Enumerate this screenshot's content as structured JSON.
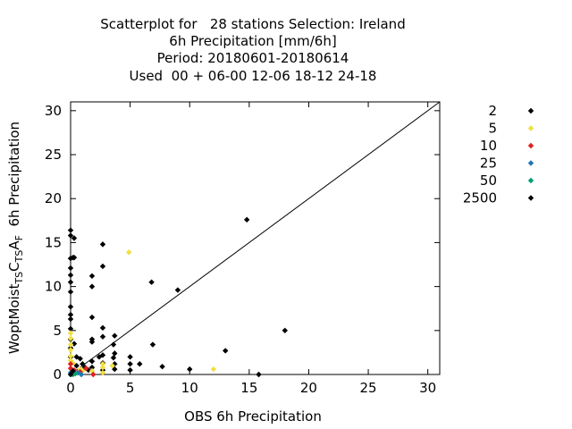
{
  "chart_data": {
    "type": "scatter",
    "title_lines": [
      "Scatterplot for   28 stations Selection: Ireland",
      "6h Precipitation [mm/6h]",
      "Period: 20180601-20180614",
      "Used  00 + 06-00 12-06 18-12 24-18"
    ],
    "xlabel": "OBS 6h Precipitation",
    "ylabel_parts": [
      "WoptMoist",
      "TS",
      "C",
      "TS",
      "A",
      "F",
      "  6h Precipitation"
    ],
    "xlim": [
      0,
      31
    ],
    "ylim": [
      0,
      31
    ],
    "xticks": [
      0,
      5,
      10,
      15,
      20,
      25,
      30
    ],
    "yticks": [
      0,
      5,
      10,
      15,
      20,
      25,
      30
    ],
    "diagonal": true,
    "legend_position": "top-right, outside plot",
    "series": [
      {
        "name": "2",
        "color": "#000000",
        "points": [
          [
            0,
            16.4
          ],
          [
            0,
            15.8
          ],
          [
            0.3,
            15.5
          ],
          [
            0,
            13.2
          ],
          [
            0.2,
            13.3
          ],
          [
            0.3,
            13.3
          ],
          [
            0,
            12.1
          ],
          [
            0,
            11.3
          ],
          [
            0,
            10.5
          ],
          [
            0,
            9.4
          ],
          [
            0,
            7.7
          ],
          [
            0,
            6.8
          ],
          [
            0,
            6.3
          ],
          [
            0,
            5.2
          ],
          [
            0,
            4.0
          ],
          [
            0,
            3.0
          ],
          [
            0,
            2.0
          ],
          [
            0.3,
            3.5
          ],
          [
            0.5,
            2.0
          ],
          [
            0.8,
            1.8
          ],
          [
            0.5,
            1.0
          ],
          [
            1.0,
            1.2
          ],
          [
            1.2,
            0.8
          ],
          [
            1.5,
            0.5
          ],
          [
            1.8,
            11.2
          ],
          [
            1.8,
            10.0
          ],
          [
            1.8,
            6.5
          ],
          [
            1.8,
            4.0
          ],
          [
            1.8,
            3.7
          ],
          [
            1.8,
            1.5
          ],
          [
            1.8,
            0.8
          ],
          [
            2.7,
            14.8
          ],
          [
            2.7,
            12.3
          ],
          [
            2.7,
            5.3
          ],
          [
            2.7,
            4.3
          ],
          [
            2.7,
            2.2
          ],
          [
            2.4,
            2.0
          ],
          [
            2.7,
            1.3
          ],
          [
            2.7,
            0.5
          ],
          [
            3.7,
            4.4
          ],
          [
            3.6,
            3.4
          ],
          [
            3.7,
            2.4
          ],
          [
            3.6,
            1.9
          ],
          [
            3.7,
            1.2
          ],
          [
            3.7,
            0.6
          ],
          [
            5.0,
            2.0
          ],
          [
            5.0,
            1.2
          ],
          [
            5.0,
            0.5
          ],
          [
            5.8,
            1.2
          ],
          [
            6.8,
            10.5
          ],
          [
            6.9,
            3.4
          ],
          [
            7.7,
            0.9
          ],
          [
            9.0,
            9.6
          ],
          [
            10.0,
            0.6
          ],
          [
            13.0,
            2.7
          ],
          [
            14.8,
            17.6
          ],
          [
            15.8,
            0.0
          ],
          [
            18.0,
            5.0
          ]
        ]
      },
      {
        "name": "5",
        "color": "#f0e040",
        "points": [
          [
            0,
            4.7
          ],
          [
            0,
            4.1
          ],
          [
            0,
            3.4
          ],
          [
            0,
            2.8
          ],
          [
            0,
            2.1
          ],
          [
            0,
            1.6
          ],
          [
            0.2,
            1.3
          ],
          [
            0.8,
            0.6
          ],
          [
            1.0,
            0.4
          ],
          [
            1.8,
            0.4
          ],
          [
            2.7,
            1.2
          ],
          [
            2.7,
            0.8
          ],
          [
            2.7,
            0.2
          ],
          [
            3.5,
            1.0
          ],
          [
            4.9,
            13.9
          ],
          [
            12.0,
            0.6
          ]
        ]
      },
      {
        "name": "10",
        "color": "#e02020",
        "points": [
          [
            0,
            1.2
          ],
          [
            0,
            0.7
          ],
          [
            0.3,
            0.5
          ],
          [
            0.8,
            0.3
          ],
          [
            1.3,
            0.7
          ],
          [
            1.9,
            0.0
          ]
        ]
      },
      {
        "name": "25",
        "color": "#1f77b4",
        "points": [
          [
            0,
            0.2
          ],
          [
            0.6,
            0.2
          ],
          [
            0.9,
            0.0
          ]
        ]
      },
      {
        "name": "50",
        "color": "#009e73",
        "points": [
          [
            0.2,
            0.0
          ],
          [
            0.4,
            0.1
          ]
        ]
      },
      {
        "name": "2500",
        "color": "#000000",
        "points": [
          [
            0,
            0.0
          ],
          [
            0.2,
            0.4
          ]
        ]
      }
    ]
  }
}
